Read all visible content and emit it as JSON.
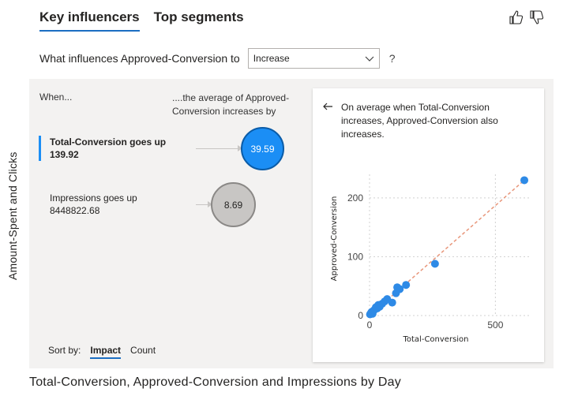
{
  "tabs": [
    {
      "label": "Key influencers",
      "active": true
    },
    {
      "label": "Top segments",
      "active": false
    }
  ],
  "feedback": {
    "like_icon": "thumbs-up-icon",
    "dislike_icon": "thumbs-down-icon"
  },
  "question": {
    "label": "What influences Approved-Conversion to",
    "selected": "Increase",
    "help": "?"
  },
  "side_label": "Amount-Spent and Clicks",
  "columns": {
    "when": "When...",
    "average": "....the average of Approved-Conversion increases by"
  },
  "influencers": [
    {
      "title": "Total-Conversion goes up",
      "value": "139.92",
      "impact": "39.59",
      "selected": true
    },
    {
      "title": "Impressions goes up",
      "value": "8448822.68",
      "impact": "8.69",
      "selected": false
    }
  ],
  "sort": {
    "label": "Sort by:",
    "options": [
      "Impact",
      "Count"
    ],
    "active": "Impact"
  },
  "detail": {
    "back_icon": "arrow-left-icon",
    "text": "On average when Total-Conversion increases, Approved-Conversion also increases."
  },
  "chart_data": {
    "type": "scatter",
    "xlabel": "Total-Conversion",
    "ylabel": "Approved-Conversion",
    "xlim": [
      0,
      640
    ],
    "ylim": [
      0,
      240
    ],
    "xticks": [
      0,
      500
    ],
    "yticks": [
      0,
      100,
      200
    ],
    "grid": true,
    "point_color": "#2e8ae6",
    "trend_color": "#e8967a",
    "points": [
      [
        2,
        2
      ],
      [
        5,
        4
      ],
      [
        8,
        6
      ],
      [
        12,
        3
      ],
      [
        15,
        8
      ],
      [
        20,
        10
      ],
      [
        25,
        14
      ],
      [
        30,
        12
      ],
      [
        35,
        18
      ],
      [
        40,
        15
      ],
      [
        50,
        20
      ],
      [
        60,
        24
      ],
      [
        70,
        28
      ],
      [
        90,
        22
      ],
      [
        105,
        38
      ],
      [
        110,
        48
      ],
      [
        120,
        45
      ],
      [
        145,
        52
      ],
      [
        260,
        88
      ],
      [
        615,
        230
      ]
    ],
    "trend": [
      [
        5,
        2
      ],
      [
        615,
        230
      ]
    ]
  },
  "footer_title": "Total-Conversion, Approved-Conversion and Impressions by Day"
}
